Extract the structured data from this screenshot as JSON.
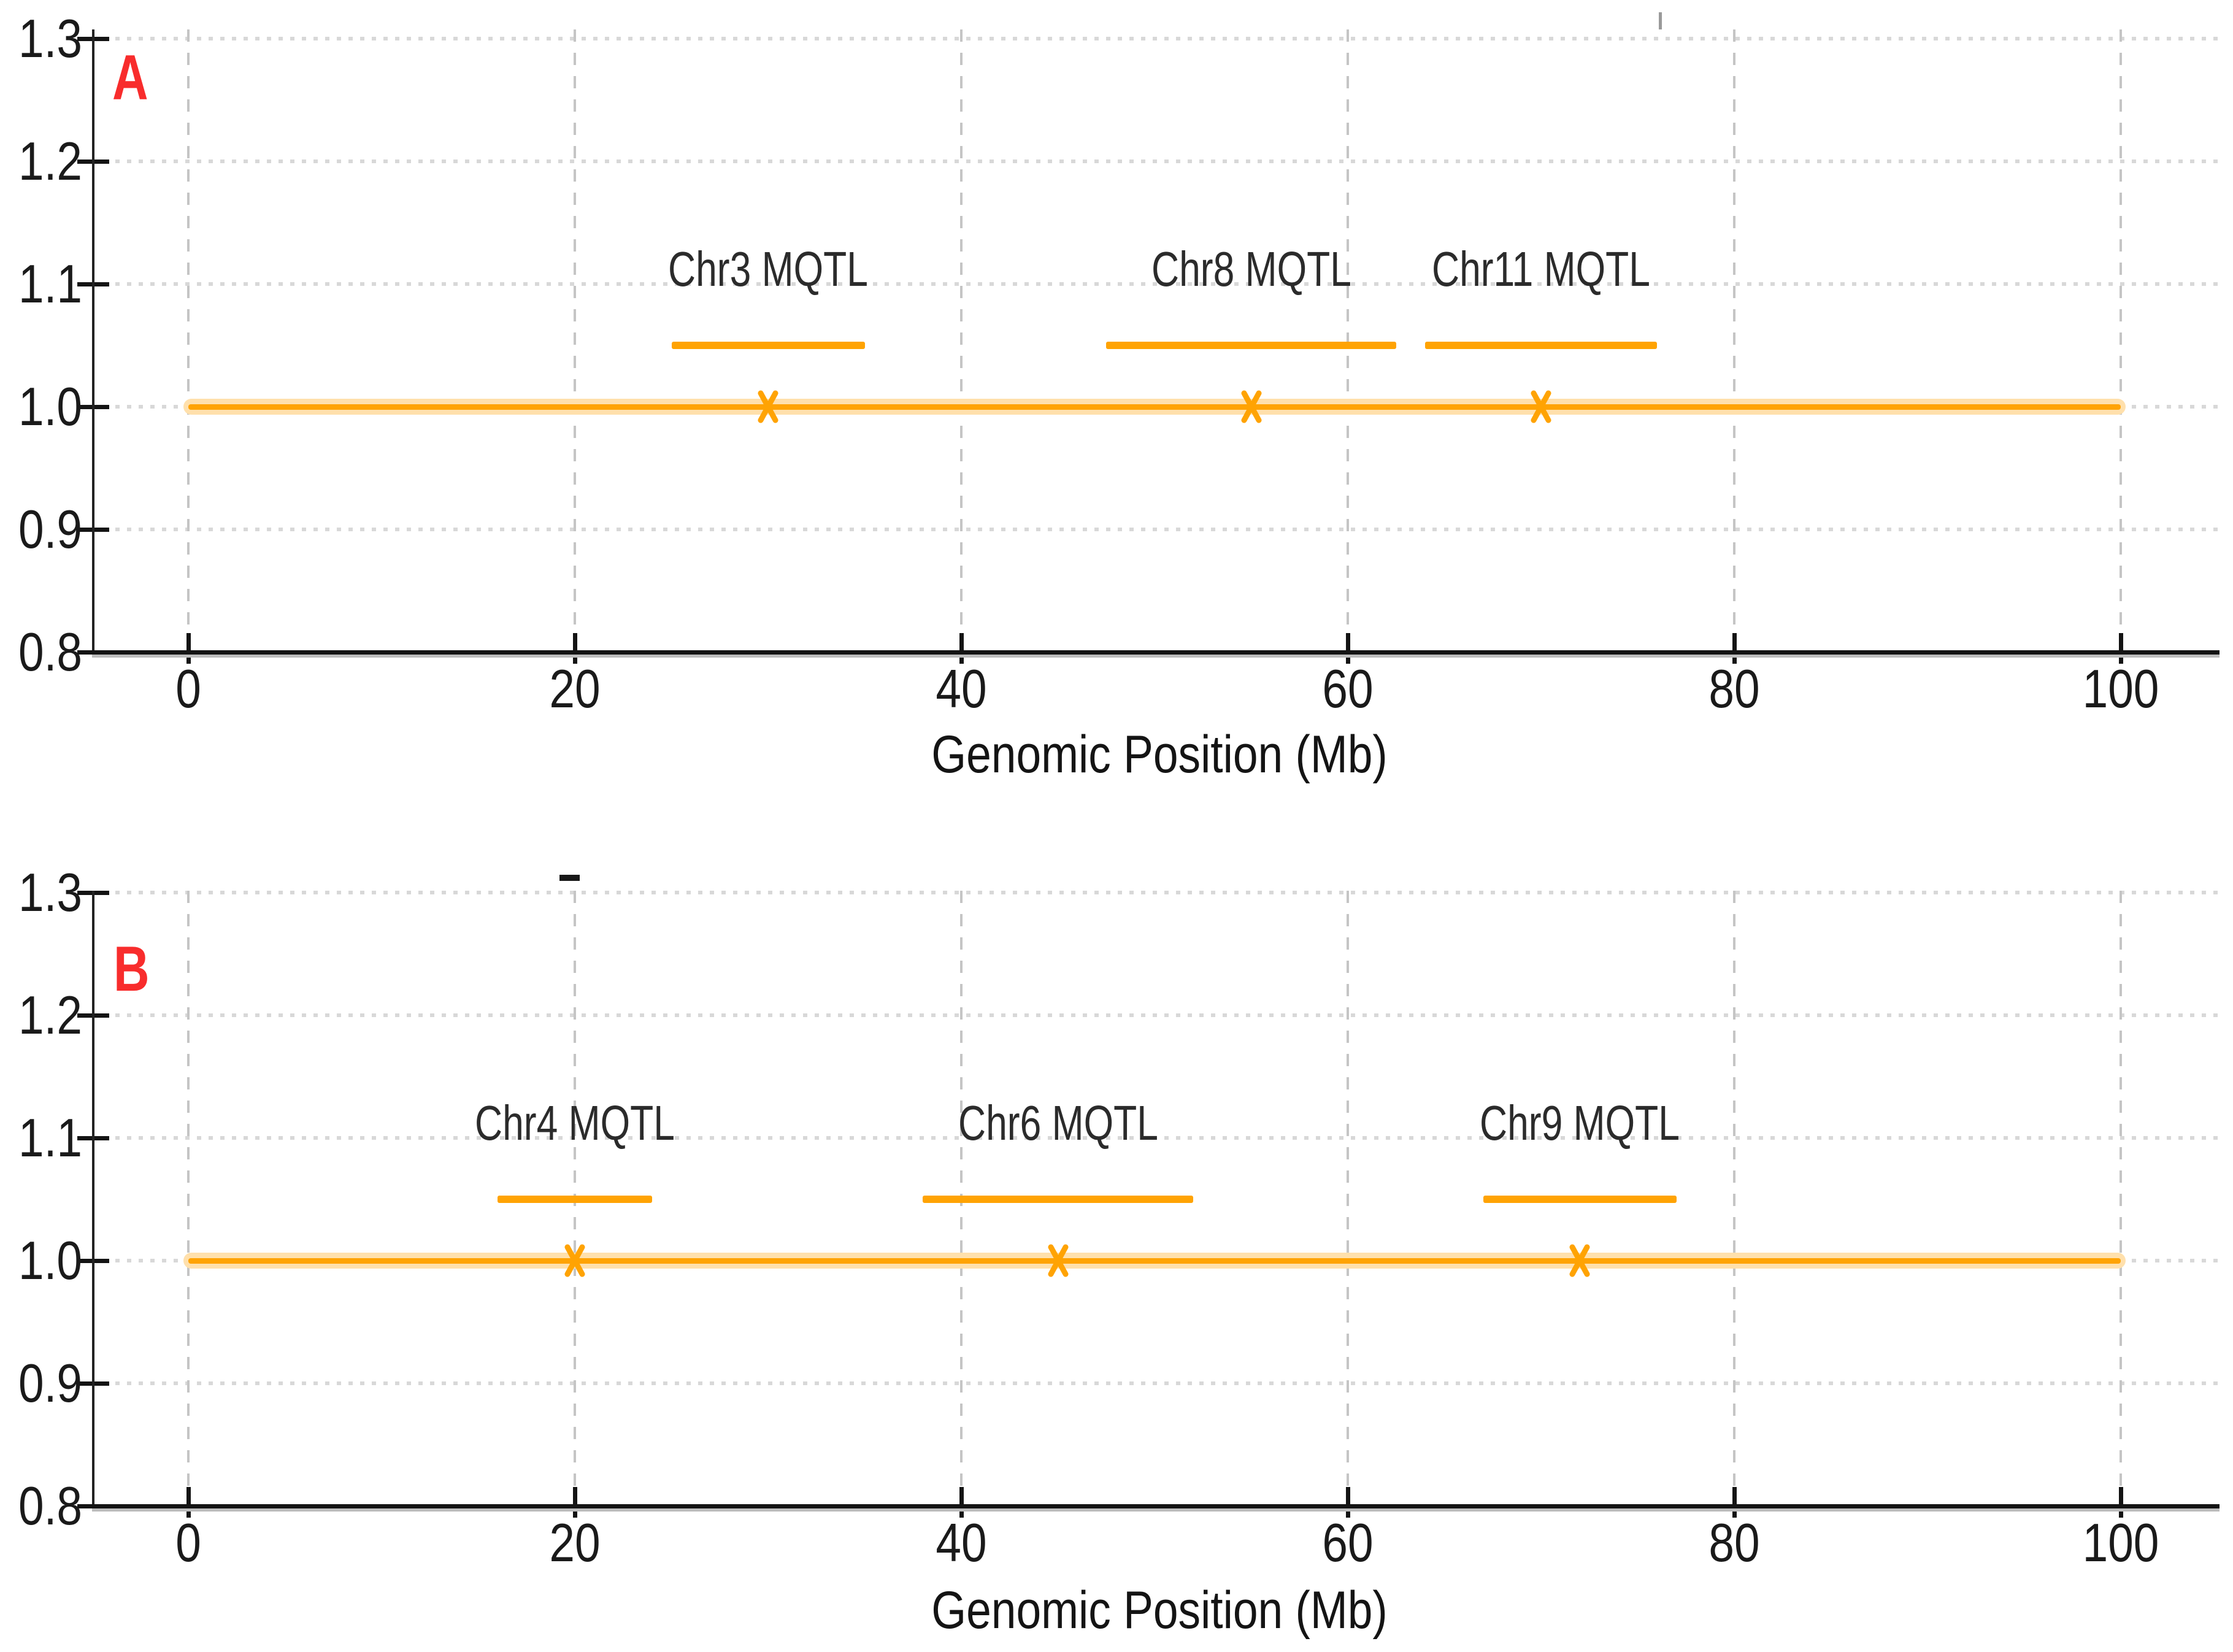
{
  "colors": {
    "qtl_orange": "#FFA303",
    "line_halo": "#FFE0AC",
    "panel_label_red": "#F82C2C",
    "grid_dotted": "#D8D8D8",
    "grid_dashed": "#C5C5C5",
    "axis_black": "#141414",
    "tick_text": "#1A1A1A",
    "qtl_label_text": "#2B2B2B"
  },
  "stray_marks": [
    {
      "shape": "vertical-dash-fragment",
      "location": "top-right corner above panel A"
    },
    {
      "shape": "horizontal-dash-fragment",
      "location": "above panel B top gridline near x=20"
    }
  ],
  "chart_data": [
    {
      "type": "line",
      "panel_label": "A",
      "title": "",
      "xlabel": "Genomic Position (Mb)",
      "ylabel": "",
      "xlim": [
        -5,
        105
      ],
      "ylim": [
        0.8,
        1.3
      ],
      "grid": true,
      "legend": "none",
      "x_ticks": [
        0,
        20,
        40,
        60,
        80,
        100
      ],
      "x_tick_labels": [
        "0",
        "20",
        "40",
        "60",
        "80",
        "100"
      ],
      "y_ticks": [
        0.8,
        0.9,
        1.0,
        1.1,
        1.2,
        1.3
      ],
      "y_tick_labels": [
        "0.8",
        "0.9",
        "1.0",
        "1.1",
        "1.2",
        "1.3"
      ],
      "chromosome_line": {
        "y": 1.0,
        "x_start": 0,
        "x_end": 100
      },
      "qtl_bar_y": 1.05,
      "qtl_label_y": 1.112,
      "qtls": [
        {
          "label": "Chr3 MQTL",
          "start": 25,
          "end": 35,
          "peak": 30,
          "peak_y": 1.0
        },
        {
          "label": "Chr8 MQTL",
          "start": 47.5,
          "end": 62.5,
          "peak": 55,
          "peak_y": 1.0
        },
        {
          "label": "Chr11 MQTL",
          "start": 64,
          "end": 76,
          "peak": 70,
          "peak_y": 1.0
        }
      ]
    },
    {
      "type": "line",
      "panel_label": "B",
      "title": "",
      "xlabel": "Genomic Position (Mb)",
      "ylabel": "",
      "xlim": [
        -5,
        105
      ],
      "ylim": [
        0.8,
        1.3
      ],
      "grid": true,
      "legend": "none",
      "x_ticks": [
        0,
        20,
        40,
        60,
        80,
        100
      ],
      "x_tick_labels": [
        "0",
        "20",
        "40",
        "60",
        "80",
        "100"
      ],
      "y_ticks": [
        0.8,
        0.9,
        1.0,
        1.1,
        1.2,
        1.3
      ],
      "y_tick_labels": [
        "0.8",
        "0.9",
        "1.0",
        "1.1",
        "1.2",
        "1.3"
      ],
      "chromosome_line": {
        "y": 1.0,
        "x_start": 0,
        "x_end": 100
      },
      "qtl_bar_y": 1.05,
      "qtl_label_y": 1.112,
      "qtls": [
        {
          "label": "Chr4 MQTL",
          "start": 16,
          "end": 24,
          "peak": 20,
          "peak_y": 1.0
        },
        {
          "label": "Chr6 MQTL",
          "start": 38,
          "end": 52,
          "peak": 45,
          "peak_y": 1.0
        },
        {
          "label": "Chr9 MQTL",
          "start": 67,
          "end": 77,
          "peak": 72,
          "peak_y": 1.0
        }
      ]
    }
  ]
}
